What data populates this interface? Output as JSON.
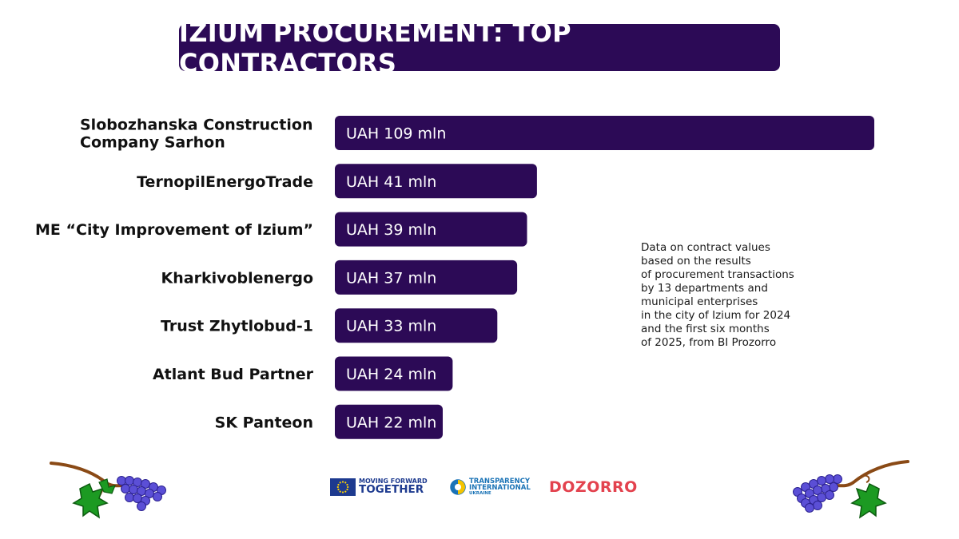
{
  "header": {
    "title": "IZIUM PROCUREMENT: TOP CONTRACTORS"
  },
  "chart_data": {
    "type": "bar",
    "orientation": "horizontal",
    "categories": [
      [
        "Slobozhanska Construction",
        "Company Sarhon"
      ],
      [
        "TernopilEnergoTrade"
      ],
      [
        "ME “City Improvement of Izium”"
      ],
      [
        "Kharkivoblenergo"
      ],
      [
        "Trust Zhytlobud-1"
      ],
      [
        "Atlant Bud Partner"
      ],
      [
        "SK Panteon"
      ]
    ],
    "values": [
      109,
      41,
      39,
      37,
      33,
      24,
      22
    ],
    "value_labels": [
      "UAH 109 mln",
      "UAH 41 mln",
      "UAH 39 mln",
      "UAH 37 mln",
      "UAH 33 mln",
      "UAH 24 mln",
      "UAH 22 mln"
    ],
    "unit": "UAH mln",
    "bar_color": "#2c0a56"
  },
  "note": {
    "lines": [
      "Data on contract values",
      "based on the results",
      "of procurement transactions",
      "by 13 departments and",
      "municipal enterprises",
      "in the city of Izium for 2024",
      "and the first six months",
      "of 2025, from BI Prozorro"
    ]
  },
  "footer": {
    "eu_logo": {
      "line1": "MOVING FORWARD",
      "line2": "TOGETHER"
    },
    "ti_logo": {
      "line1": "TRANSPARENCY",
      "line2": "INTERNATIONAL",
      "line3": "UKRAINE"
    },
    "dozorro_logo": {
      "text": "DOZORRO"
    }
  },
  "decor": {
    "grape_color": "#5b4fd6",
    "leaf_color": "#1c9a22",
    "vine_color": "#8a4a16"
  }
}
